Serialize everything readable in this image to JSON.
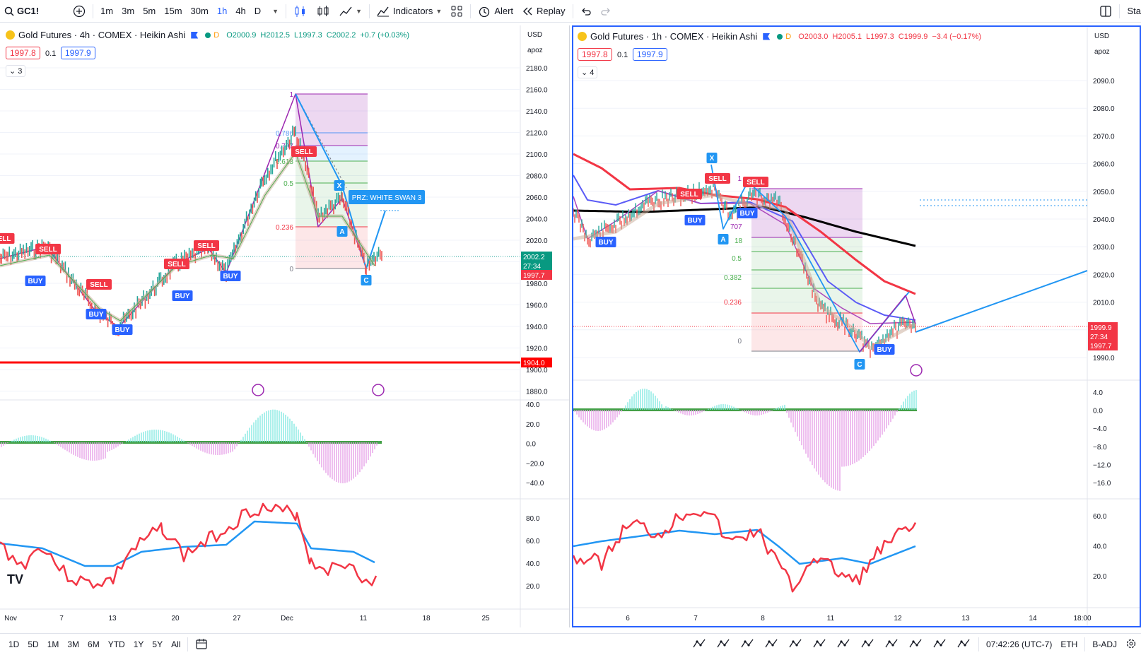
{
  "toolbar": {
    "symbol": "GC1!",
    "timeframes": [
      "1m",
      "3m",
      "5m",
      "15m",
      "30m",
      "1h",
      "4h",
      "D"
    ],
    "active_timeframe": "1h",
    "indicators": "Indicators",
    "alert": "Alert",
    "replay": "Replay",
    "right_cut": "Sta"
  },
  "bottombar": {
    "ranges": [
      "1D",
      "5D",
      "1M",
      "3M",
      "6M",
      "YTD",
      "1Y",
      "5Y",
      "All"
    ],
    "clock": "07:42:26 (UTC-7)",
    "session": "ETH",
    "adj": "B-ADJ"
  },
  "left": {
    "title": "Gold Futures · 4h · COMEX · Heikin Ashi",
    "d_label": "D",
    "open": "O2000.9",
    "high": "H2012.5",
    "low": "L1997.3",
    "close": "C2002.2",
    "change": "+0.7 (+0.03%)",
    "bid": "1997.8",
    "spread": "0.1",
    "ask": "1997.9",
    "indicators_count": "3",
    "currency": "USD",
    "scale": "apoz",
    "price_ticks": [
      "2180.0",
      "2160.0",
      "2140.0",
      "2120.0",
      "2100.0",
      "2080.0",
      "2060.0",
      "2040.0",
      "2020.0",
      "2000.0",
      "1980.0",
      "1960.0",
      "1940.0",
      "1920.0",
      "1900.0",
      "1880.0"
    ],
    "osc_ticks": [
      "40.0",
      "20.0",
      "0.0",
      "−20.0",
      "−40.0"
    ],
    "rsi_ticks": [
      "80.0",
      "60.0",
      "40.0",
      "20.0"
    ],
    "time_ticks": [
      "Nov",
      "7",
      "13",
      "20",
      "27",
      "Dec",
      "11",
      "18",
      "25"
    ],
    "last_price": "2002.2",
    "countdown": "27:34",
    "bid_tag": "1997.7",
    "line_price": "1904.0",
    "fib_levels": [
      "1",
      "0.786",
      "0.707",
      "0.618",
      "0.5",
      "0.236",
      "0"
    ],
    "prz_label": "PRZ: WHITE SWAN 3",
    "pattern_points": [
      "X",
      "A",
      "C"
    ],
    "buy": "BUY",
    "sell": "SELL",
    "sell_cut": "ELL",
    "logo": "TV"
  },
  "right": {
    "title": "Gold Futures · 1h · COMEX · Heikin Ashi",
    "d_label": "D",
    "open": "O2003.0",
    "high": "H2005.1",
    "low": "L1997.3",
    "close": "C1999.9",
    "change": "−3.4 (−0.17%)",
    "bid": "1997.8",
    "spread": "0.1",
    "ask": "1997.9",
    "indicators_count": "4",
    "currency": "USD",
    "scale": "apoz",
    "price_ticks": [
      "2090.0",
      "2080.0",
      "2070.0",
      "2060.0",
      "2050.0",
      "2040.0",
      "2030.0",
      "2020.0",
      "2010.0",
      "2000.0",
      "1990.0"
    ],
    "osc_ticks": [
      "4.0",
      "0.0",
      "−4.0",
      "−8.0",
      "−12.0",
      "−16.0"
    ],
    "rsi_ticks": [
      "60.0",
      "40.0",
      "20.0"
    ],
    "time_ticks": [
      "6",
      "7",
      "8",
      "11",
      "12",
      "13",
      "14",
      "18:00"
    ],
    "last_price": "1999.9",
    "countdown": "27:34",
    "bid_tag": "1997.7",
    "fib_levels": [
      "1",
      "0.707",
      "0.618",
      "0.5",
      "0.382",
      "0.236",
      "0"
    ],
    "fib_partial": [
      "707",
      "18"
    ],
    "pattern_points": [
      "X",
      "A",
      "C"
    ],
    "buy": "BUY",
    "sell": "SELL"
  }
}
